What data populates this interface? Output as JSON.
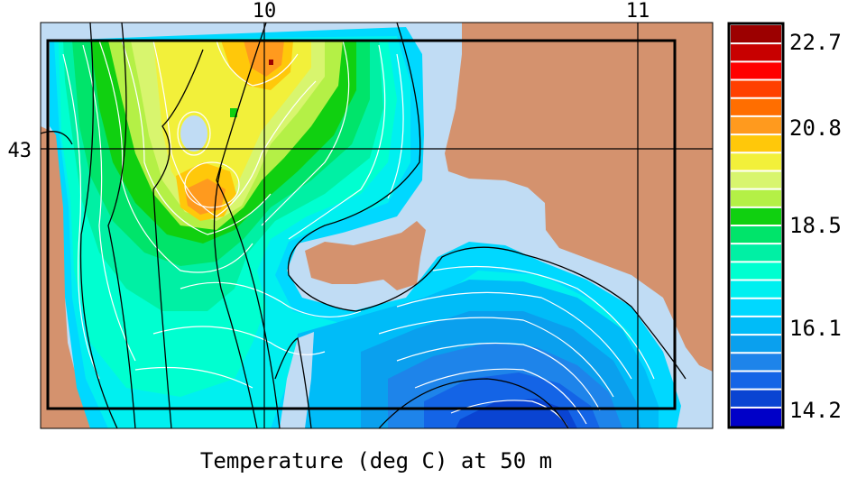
{
  "map": {
    "title": "Temperature (deg C) at 50 m",
    "lon_ticks": [
      "10",
      "11"
    ],
    "lat_ticks": [
      "43"
    ],
    "colors": {
      "land": "#d4926e",
      "shelf": "#c0dcf4",
      "frame": "#000000",
      "contour_white": "#ffffff",
      "bathy_black": "#000000"
    }
  },
  "colorbar": {
    "tick_labels": [
      "22.7",
      "20.8",
      "18.5",
      "16.1",
      "14.2"
    ],
    "steps": [
      "#9c0000",
      "#c80000",
      "#ff0000",
      "#ff4000",
      "#ff6e00",
      "#ff9a1e",
      "#ffc80a",
      "#f2f03a",
      "#d8f56e",
      "#b4f046",
      "#10d010",
      "#00e46a",
      "#00f0a4",
      "#00ffd0",
      "#00f0f0",
      "#00d8ff",
      "#00bcf8",
      "#0aa0ee",
      "#1e84ea",
      "#1464e6",
      "#0a44d2",
      "#0000c8"
    ]
  }
}
